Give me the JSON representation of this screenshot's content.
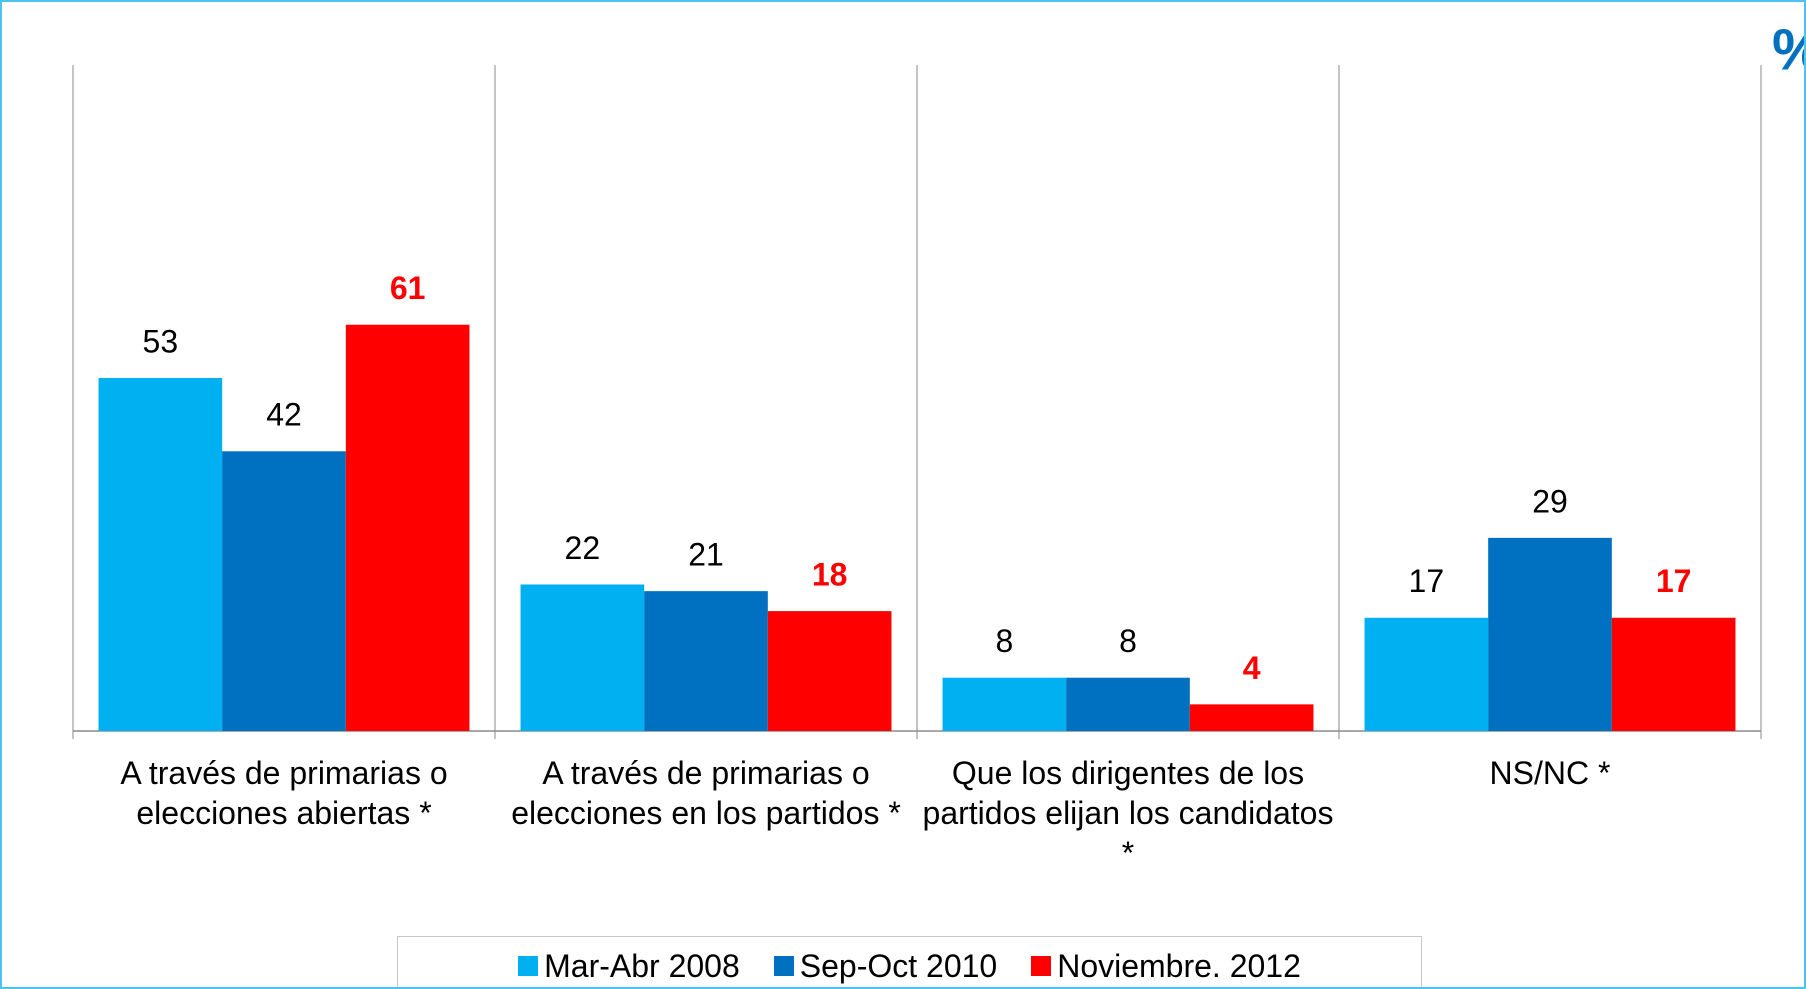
{
  "chart_data": {
    "type": "bar",
    "annotation": "%",
    "categories": [
      "A través de primarias o elecciones abiertas *",
      "A través de primarias o elecciones en los partidos *",
      "Que los dirigentes de los partidos elijan los candidatos *",
      "NS/NC *"
    ],
    "series": [
      {
        "name": "Mar-Abr 2008",
        "color": "#00b0f0",
        "values": [
          53,
          22,
          8,
          17
        ]
      },
      {
        "name": "Sep-Oct 2010",
        "color": "#0070c0",
        "values": [
          42,
          21,
          8,
          29
        ]
      },
      {
        "name": "Noviembre. 2012",
        "color": "#ff0000",
        "values": [
          61,
          18,
          4,
          17
        ],
        "label_color": "#ff0000",
        "label_bold": true
      }
    ],
    "ylim": [
      0,
      100
    ],
    "legend": "bottom"
  }
}
